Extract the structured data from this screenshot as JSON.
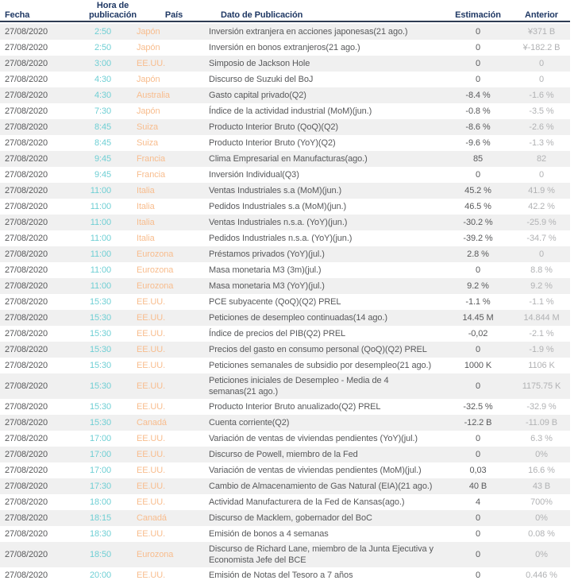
{
  "header": {
    "columns": [
      {
        "key": "date",
        "label": "Fecha"
      },
      {
        "key": "time",
        "label": "Hora de publicación"
      },
      {
        "key": "country",
        "label": "País"
      },
      {
        "key": "event",
        "label": "Dato de Publicación"
      },
      {
        "key": "estimate",
        "label": "Estimación"
      },
      {
        "key": "previous",
        "label": "Anterior"
      }
    ]
  },
  "colors": {
    "header_text": "#1f3864",
    "header_border": "#2e3c54",
    "row_stripe": "#f0f0f0",
    "text_primary": "#58595b",
    "time_accent": "#6fcfd4",
    "country_accent": "#f8bd8e",
    "previous_value": "#b1b2b4"
  },
  "rows": [
    {
      "date": "27/08/2020",
      "time": "2:50",
      "country": "Japón",
      "event": "Inversión extranjera en acciones japonesas(21 ago.)",
      "estimate": "0",
      "previous": "¥371 B"
    },
    {
      "date": "27/08/2020",
      "time": "2:50",
      "country": "Japón",
      "event": "Inversión en bonos extranjeros(21 ago.)",
      "estimate": "0",
      "previous": "¥-182.2 B"
    },
    {
      "date": "27/08/2020",
      "time": "3:00",
      "country": "EE.UU.",
      "event": "Simposio de Jackson Hole",
      "estimate": "0",
      "previous": "0"
    },
    {
      "date": "27/08/2020",
      "time": "4:30",
      "country": "Japón",
      "event": "Discurso de Suzuki del BoJ",
      "estimate": "0",
      "previous": "0"
    },
    {
      "date": "27/08/2020",
      "time": "4:30",
      "country": "Australia",
      "event": "Gasto capital privado(Q2)",
      "estimate": "-8.4 %",
      "previous": "-1.6 %"
    },
    {
      "date": "27/08/2020",
      "time": "7:30",
      "country": "Japón",
      "event": "Índice de la actividad industrial (MoM)(jun.)",
      "estimate": "-0.8 %",
      "previous": "-3.5 %"
    },
    {
      "date": "27/08/2020",
      "time": "8:45",
      "country": "Suiza",
      "event": "Producto Interior Bruto (QoQ)(Q2)",
      "estimate": "-8.6 %",
      "previous": "-2.6 %"
    },
    {
      "date": "27/08/2020",
      "time": "8:45",
      "country": "Suiza",
      "event": "Producto Interior Bruto (YoY)(Q2)",
      "estimate": "-9.6 %",
      "previous": "-1.3 %"
    },
    {
      "date": "27/08/2020",
      "time": "9:45",
      "country": "Francia",
      "event": "Clima Empresarial en Manufacturas(ago.)",
      "estimate": "85",
      "previous": "82"
    },
    {
      "date": "27/08/2020",
      "time": "9:45",
      "country": "Francia",
      "event": "Inversión Individual(Q3)",
      "estimate": "0",
      "previous": "0"
    },
    {
      "date": "27/08/2020",
      "time": "11:00",
      "country": "Italia",
      "event": "Ventas Industriales s.a (MoM)(jun.)",
      "estimate": "45.2 %",
      "previous": "41.9 %"
    },
    {
      "date": "27/08/2020",
      "time": "11:00",
      "country": "Italia",
      "event": "Pedidos Industriales s.a (MoM)(jun.)",
      "estimate": "46.5 %",
      "previous": "42.2 %"
    },
    {
      "date": "27/08/2020",
      "time": "11:00",
      "country": "Italia",
      "event": "Ventas Industriales n.s.a. (YoY)(jun.)",
      "estimate": "-30.2 %",
      "previous": "-25.9 %"
    },
    {
      "date": "27/08/2020",
      "time": "11:00",
      "country": "Italia",
      "event": "Pedidos Industriales n.s.a. (YoY)(jun.)",
      "estimate": "-39.2 %",
      "previous": "-34.7 %"
    },
    {
      "date": "27/08/2020",
      "time": "11:00",
      "country": "Eurozona",
      "event": "Préstamos privados (YoY)(jul.)",
      "estimate": "2.8 %",
      "previous": "0"
    },
    {
      "date": "27/08/2020",
      "time": "11:00",
      "country": "Eurozona",
      "event": "Masa monetaria M3 (3m)(jul.)",
      "estimate": "0",
      "previous": "8.8 %"
    },
    {
      "date": "27/08/2020",
      "time": "11:00",
      "country": "Eurozona",
      "event": "Masa monetaria M3 (YoY)(jul.)",
      "estimate": "9.2 %",
      "previous": "9.2 %"
    },
    {
      "date": "27/08/2020",
      "time": "15:30",
      "country": "EE.UU.",
      "event": "PCE subyacente (QoQ)(Q2) PREL",
      "estimate": "-1.1 %",
      "previous": "-1.1 %"
    },
    {
      "date": "27/08/2020",
      "time": "15:30",
      "country": "EE.UU.",
      "event": "Peticiones de desempleo continuadas(14 ago.)",
      "estimate": "14.45 M",
      "previous": "14.844 M"
    },
    {
      "date": "27/08/2020",
      "time": "15:30",
      "country": "EE.UU.",
      "event": "Índice de precios del PIB(Q2) PREL",
      "estimate": "-0,02",
      "previous": "-2.1 %"
    },
    {
      "date": "27/08/2020",
      "time": "15:30",
      "country": "EE.UU.",
      "event": "Precios del gasto en consumo personal (QoQ)(Q2) PREL",
      "estimate": "0",
      "previous": "-1.9 %"
    },
    {
      "date": "27/08/2020",
      "time": "15:30",
      "country": "EE.UU.",
      "event": "Peticiones semanales de subsidio por desempleo(21 ago.)",
      "estimate": "1000 K",
      "previous": "1106 K"
    },
    {
      "date": "27/08/2020",
      "time": "15:30",
      "country": "EE.UU.",
      "event": "Peticiones iniciales de Desempleo - Media de 4 semanas(21 ago.)",
      "estimate": "0",
      "previous": "1175.75 K"
    },
    {
      "date": "27/08/2020",
      "time": "15:30",
      "country": "EE.UU.",
      "event": "Producto Interior Bruto anualizado(Q2) PREL",
      "estimate": "-32.5 %",
      "previous": "-32.9 %"
    },
    {
      "date": "27/08/2020",
      "time": "15:30",
      "country": "Canadá",
      "event": "Cuenta corriente(Q2)",
      "estimate": "-12.2 B",
      "previous": "-11.09 B"
    },
    {
      "date": "27/08/2020",
      "time": "17:00",
      "country": "EE.UU.",
      "event": "Variación de ventas de viviendas pendientes (YoY)(jul.)",
      "estimate": "0",
      "previous": "6.3 %"
    },
    {
      "date": "27/08/2020",
      "time": "17:00",
      "country": "EE.UU.",
      "event": "Discurso de Powell, miembro de la Fed",
      "estimate": "0",
      "previous": "0%"
    },
    {
      "date": "27/08/2020",
      "time": "17:00",
      "country": "EE.UU.",
      "event": "Variación de ventas de viviendas pendientes (MoM)(jul.)",
      "estimate": "0,03",
      "previous": "16.6 %"
    },
    {
      "date": "27/08/2020",
      "time": "17:30",
      "country": "EE.UU.",
      "event": "Cambio de Almacenamiento de Gas Natural (EIA)(21 ago.)",
      "estimate": "40 B",
      "previous": "43 B"
    },
    {
      "date": "27/08/2020",
      "time": "18:00",
      "country": "EE.UU.",
      "event": "Actividad Manufacturera de la Fed de Kansas(ago.)",
      "estimate": "4",
      "previous": "700%"
    },
    {
      "date": "27/08/2020",
      "time": "18:15",
      "country": "Canadá",
      "event": "Discurso de Macklem, gobernador del BoC",
      "estimate": "0",
      "previous": "0%"
    },
    {
      "date": "27/08/2020",
      "time": "18:30",
      "country": "EE.UU.",
      "event": "Emisión de bonos a 4 semanas",
      "estimate": "0",
      "previous": "0.08 %"
    },
    {
      "date": "27/08/2020",
      "time": "18:50",
      "country": "Eurozona",
      "event": "Discurso de Richard Lane, miembro de la Junta Ejecutiva y Economista Jefe del BCE",
      "estimate": "0",
      "previous": "0%"
    },
    {
      "date": "27/08/2020",
      "time": "20:00",
      "country": "EE.UU.",
      "event": "Emisión de Notas del Tesoro a 7 años",
      "estimate": "0",
      "previous": "0.446 %"
    }
  ]
}
